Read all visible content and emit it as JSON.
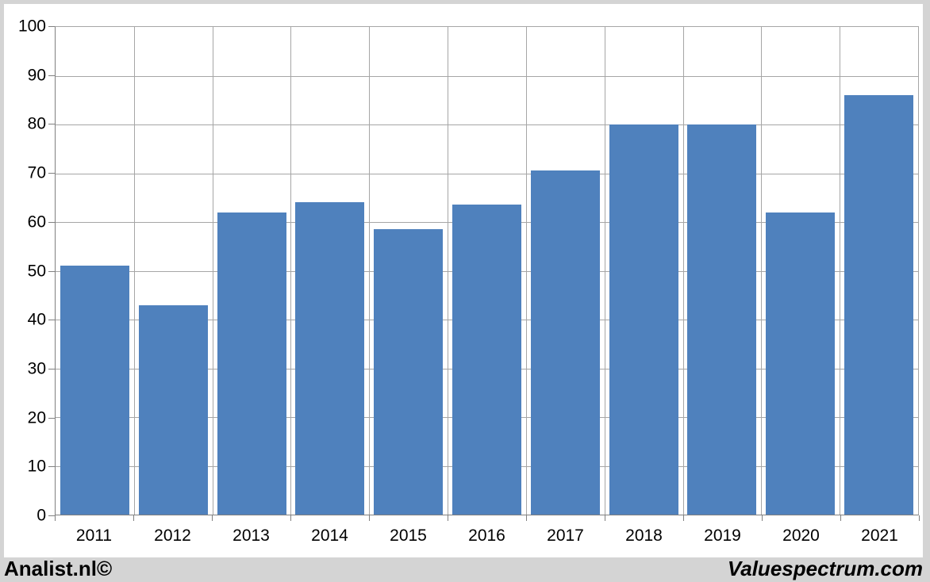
{
  "chart_data": {
    "type": "bar",
    "title": "",
    "xlabel": "",
    "ylabel": "",
    "categories": [
      "2011",
      "2012",
      "2013",
      "2014",
      "2015",
      "2016",
      "2017",
      "2018",
      "2019",
      "2020",
      "2021"
    ],
    "values": [
      51,
      43,
      62,
      64,
      58.5,
      63.5,
      70.5,
      80,
      80,
      62,
      86
    ],
    "ylim": [
      0,
      100
    ],
    "yticks": [
      0,
      10,
      20,
      30,
      40,
      50,
      60,
      70,
      80,
      90,
      100
    ],
    "grid": true,
    "legend": "none",
    "bar_color": "#4f81bd",
    "gridline_color": "#a6a6a6",
    "axis_color": "#808080"
  },
  "footer": {
    "left_label": "Analist.nl©",
    "right_label": "Valuespectrum.com"
  },
  "colors": {
    "frame_background": "#d4d4d4",
    "panel_background": "#ffffff",
    "text": "#000000"
  }
}
